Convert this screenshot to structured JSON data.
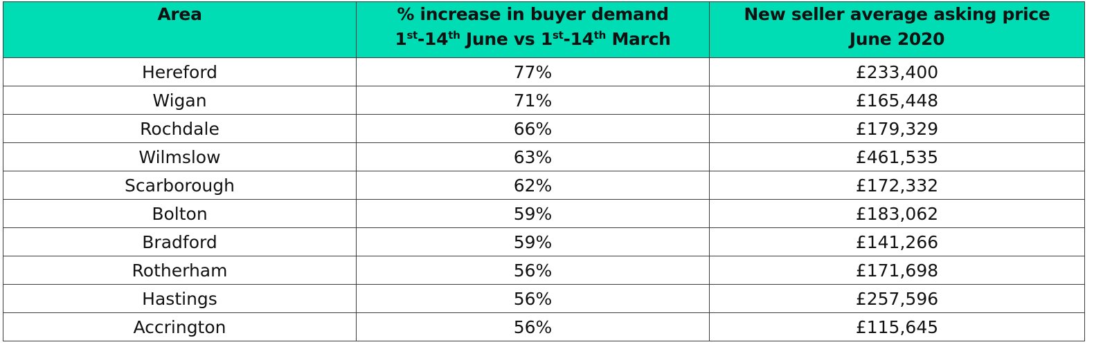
{
  "header": {
    "area": "Area",
    "demand_line1": "% increase in buyer demand",
    "demand_line2": {
      "a1": "1",
      "s1": "st",
      "a2": "-14",
      "s2": "th",
      "a3": " June vs 1",
      "s3": "st",
      "a4": "-14",
      "s4": "th",
      "a5": " March"
    },
    "price_line1": "New seller average asking price",
    "price_line2": "June 2020"
  },
  "rows": [
    {
      "area": "Hereford",
      "increase": "77%",
      "price": "£233,400"
    },
    {
      "area": "Wigan",
      "increase": "71%",
      "price": "£165,448"
    },
    {
      "area": "Rochdale",
      "increase": "66%",
      "price": "£179,329"
    },
    {
      "area": "Wilmslow",
      "increase": "63%",
      "price": "£461,535"
    },
    {
      "area": "Scarborough",
      "increase": "62%",
      "price": "£172,332"
    },
    {
      "area": "Bolton",
      "increase": "59%",
      "price": "£183,062"
    },
    {
      "area": "Bradford",
      "increase": "59%",
      "price": "£141,266"
    },
    {
      "area": "Rotherham",
      "increase": "56%",
      "price": "£171,698"
    },
    {
      "area": "Hastings",
      "increase": "56%",
      "price": "£257,596"
    },
    {
      "area": "Accrington",
      "increase": "56%",
      "price": "£115,645"
    }
  ],
  "colors": {
    "header_bg": "#00dcb3",
    "border": "#3b3b3b"
  }
}
